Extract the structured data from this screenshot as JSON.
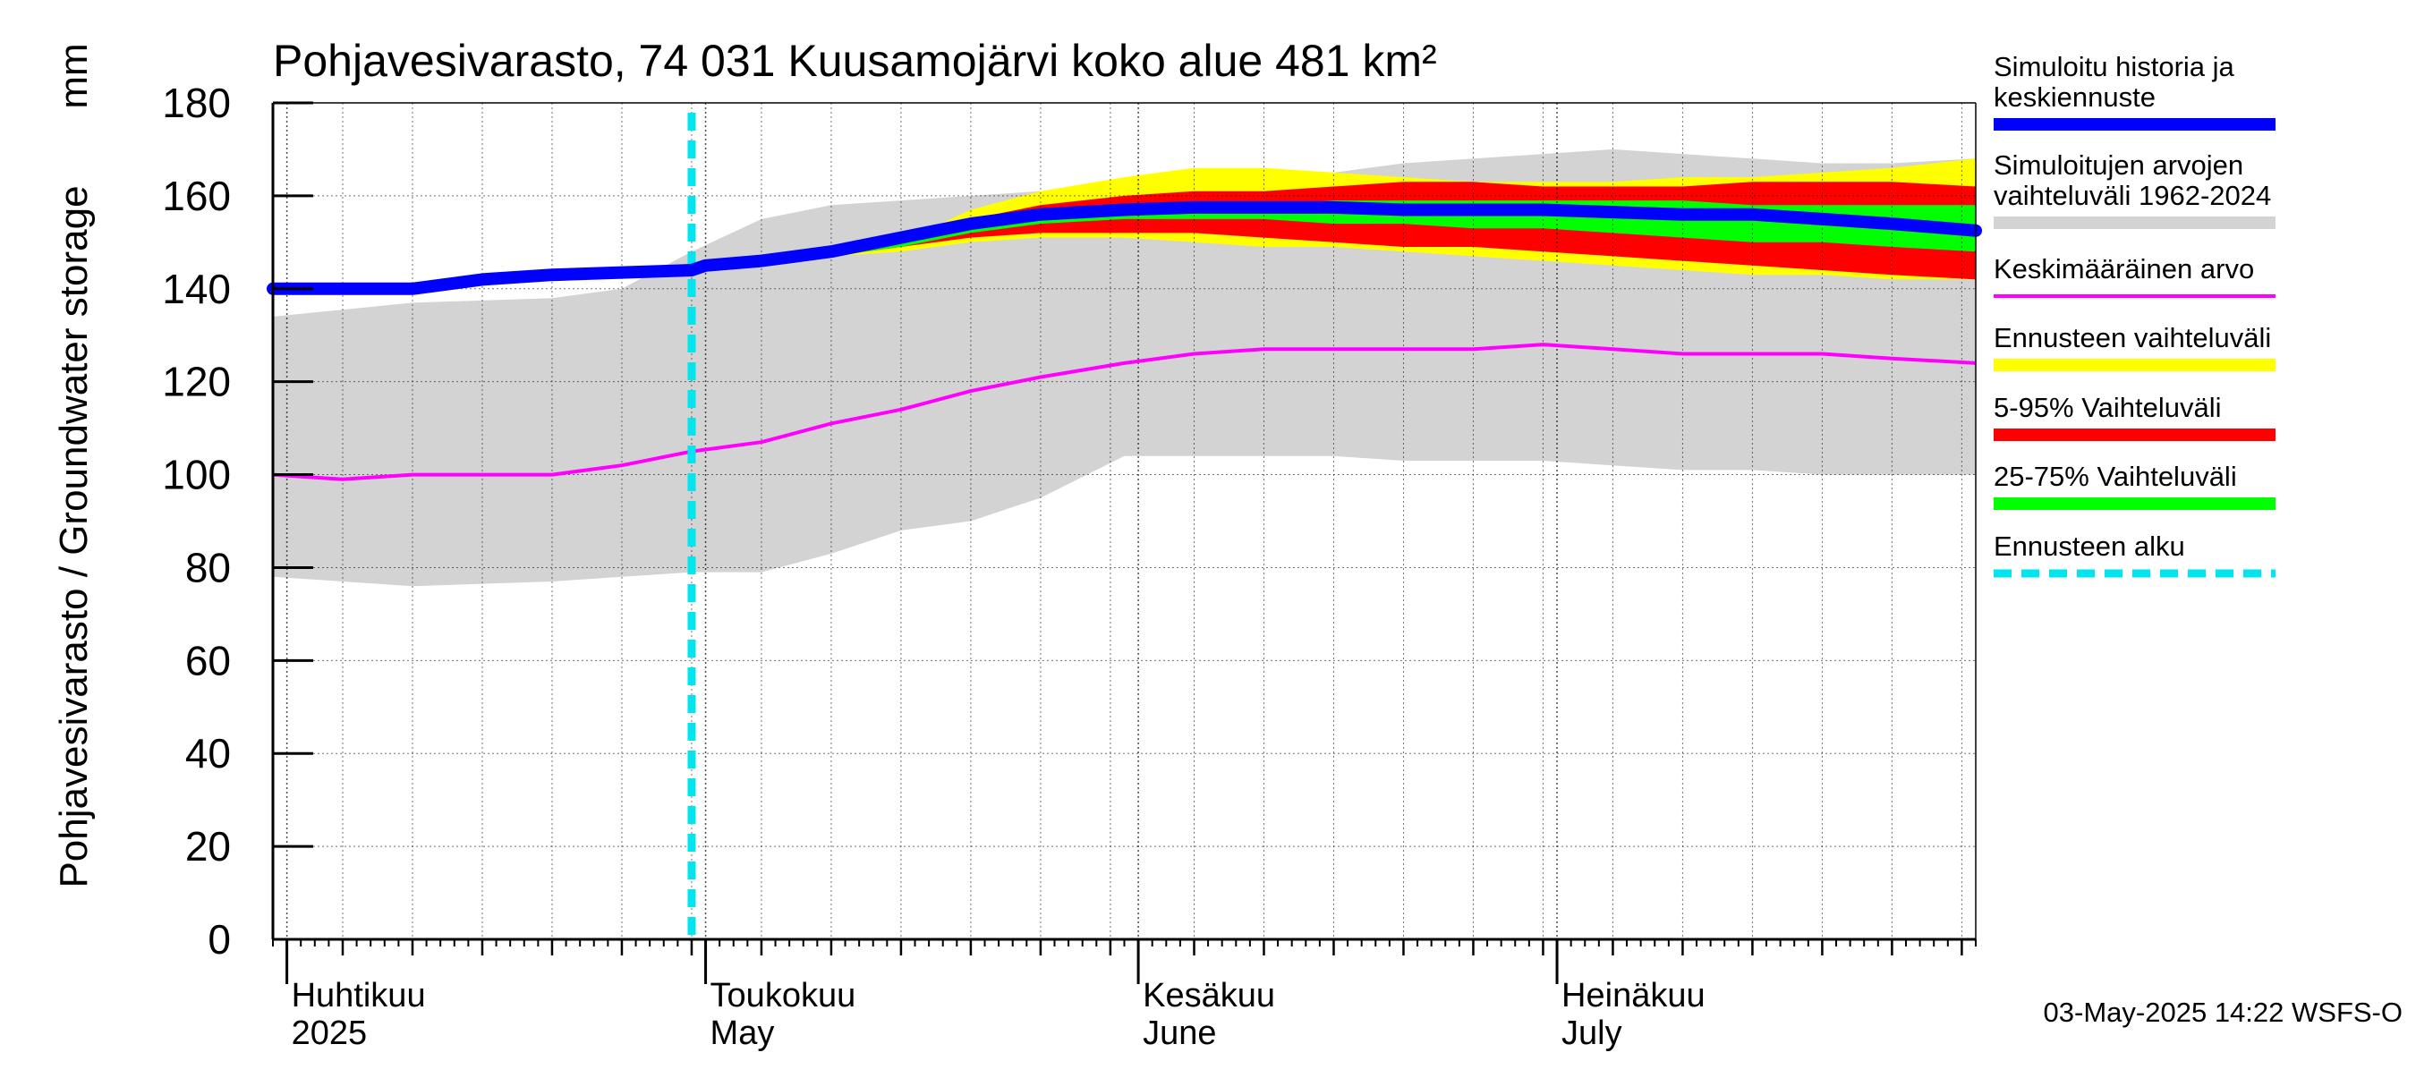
{
  "chart_data": {
    "type": "area",
    "title": "Pohjavesivarasto, 74 031 Kuusamojärvi koko alue 481 km²",
    "ylabel": "Pohjavesivarasto / Groundwater storage",
    "yunit": "mm",
    "ylim": [
      0,
      180
    ],
    "yticks": [
      0,
      20,
      40,
      60,
      80,
      100,
      120,
      140,
      160,
      180
    ],
    "xlim": [
      "2025-03-31",
      "2025-07-31"
    ],
    "grid": true,
    "legend_position": "right",
    "month_labels": [
      {
        "date": "2025-04-01",
        "fi": "Huhtikuu",
        "en": "2025"
      },
      {
        "date": "2025-05-01",
        "fi": "Toukokuu",
        "en": "May"
      },
      {
        "date": "2025-06-01",
        "fi": "Kesäkuu",
        "en": "June"
      },
      {
        "date": "2025-07-01",
        "fi": "Heinäkuu",
        "en": "July"
      }
    ],
    "forecast_start": "2025-04-30",
    "footer": "03-May-2025 14:22 WSFS-O",
    "legend": [
      {
        "label": "Simuloitu historia ja keskiennuste",
        "lines": [
          "Simuloitu historia ja",
          "keskiennuste"
        ],
        "color": "#0000ff",
        "style": "thick"
      },
      {
        "label": "Simuloitujen arvojen vaihteluväli 1962-2024",
        "lines": [
          "Simuloitujen arvojen",
          "vaihteluväli 1962-2024"
        ],
        "color": "#d3d3d3",
        "style": "thick"
      },
      {
        "label": "Keskimääräinen arvo",
        "lines": [
          "Keskimääräinen arvo"
        ],
        "color": "#ff00ff",
        "style": "thin"
      },
      {
        "label": "Ennusteen vaihteluväli",
        "lines": [
          "Ennusteen vaihteluväli"
        ],
        "color": "#ffff00",
        "style": "thick"
      },
      {
        "label": "5-95% Vaihteluväli",
        "lines": [
          "5-95% Vaihteluväli"
        ],
        "color": "#ff0000",
        "style": "thick"
      },
      {
        "label": "25-75% Vaihteluväli",
        "lines": [
          "25-75% Vaihteluväli"
        ],
        "color": "#00ff00",
        "style": "thick"
      },
      {
        "label": "Ennusteen alku",
        "lines": [
          "Ennusteen alku"
        ],
        "color": "#00e5ee",
        "style": "dashed"
      }
    ],
    "historical_range": {
      "color": "#d3d3d3",
      "x": [
        "2025-03-31",
        "2025-04-10",
        "2025-04-20",
        "2025-04-25",
        "2025-04-30",
        "2025-05-05",
        "2025-05-10",
        "2025-05-15",
        "2025-05-20",
        "2025-05-25",
        "2025-05-31",
        "2025-06-05",
        "2025-06-10",
        "2025-06-15",
        "2025-06-20",
        "2025-06-25",
        "2025-06-30",
        "2025-07-05",
        "2025-07-10",
        "2025-07-15",
        "2025-07-20",
        "2025-07-25",
        "2025-07-31"
      ],
      "upper": [
        134,
        137,
        138,
        140,
        148,
        155,
        158,
        159,
        160,
        161,
        162,
        163,
        164,
        165,
        167,
        168,
        169,
        170,
        169,
        168,
        167,
        167,
        168
      ],
      "lower": [
        78,
        76,
        77,
        78,
        79,
        79,
        83,
        88,
        90,
        95,
        104,
        104,
        104,
        104,
        103,
        103,
        103,
        102,
        101,
        101,
        100,
        100,
        100
      ]
    },
    "forecast_range": {
      "color": "#ffff00",
      "x": [
        "2025-04-30",
        "2025-05-05",
        "2025-05-10",
        "2025-05-15",
        "2025-05-20",
        "2025-05-25",
        "2025-05-31",
        "2025-06-05",
        "2025-06-10",
        "2025-06-15",
        "2025-06-20",
        "2025-06-25",
        "2025-06-30",
        "2025-07-05",
        "2025-07-10",
        "2025-07-15",
        "2025-07-20",
        "2025-07-25",
        "2025-07-31"
      ],
      "upper": [
        144,
        146,
        147,
        150,
        157,
        161,
        164,
        166,
        166,
        165,
        164,
        163,
        163,
        163,
        164,
        164,
        165,
        166,
        168
      ],
      "lower": [
        144,
        146,
        147,
        148,
        150,
        151,
        151,
        150,
        149,
        149,
        148,
        147,
        146,
        145,
        144,
        143,
        143,
        142,
        142
      ]
    },
    "p5_95_range": {
      "color": "#ff0000",
      "x": [
        "2025-04-30",
        "2025-05-05",
        "2025-05-10",
        "2025-05-15",
        "2025-05-20",
        "2025-05-25",
        "2025-05-31",
        "2025-06-05",
        "2025-06-10",
        "2025-06-15",
        "2025-06-20",
        "2025-06-25",
        "2025-06-30",
        "2025-07-05",
        "2025-07-10",
        "2025-07-15",
        "2025-07-20",
        "2025-07-25",
        "2025-07-31"
      ],
      "upper": [
        144,
        146,
        147,
        150,
        155,
        158,
        160,
        161,
        161,
        162,
        163,
        163,
        162,
        162,
        162,
        163,
        163,
        163,
        162
      ],
      "lower": [
        144,
        146,
        147,
        149,
        151,
        152,
        152,
        152,
        151,
        150,
        149,
        149,
        148,
        147,
        146,
        145,
        144,
        143,
        142
      ]
    },
    "p25_75_range": {
      "color": "#00ff00",
      "x": [
        "2025-04-30",
        "2025-05-05",
        "2025-05-10",
        "2025-05-15",
        "2025-05-20",
        "2025-05-25",
        "2025-05-31",
        "2025-06-05",
        "2025-06-10",
        "2025-06-15",
        "2025-06-20",
        "2025-06-25",
        "2025-06-30",
        "2025-07-05",
        "2025-07-10",
        "2025-07-15",
        "2025-07-20",
        "2025-07-25",
        "2025-07-31"
      ],
      "upper": [
        144,
        146,
        147,
        150,
        153,
        155,
        157,
        158,
        158,
        159,
        159,
        159,
        159,
        159,
        159,
        158,
        158,
        158,
        158
      ],
      "lower": [
        144,
        146,
        147,
        149,
        152,
        154,
        155,
        155,
        155,
        154,
        154,
        153,
        153,
        152,
        151,
        150,
        150,
        149,
        148
      ]
    },
    "series": [
      {
        "name": "Simuloitu historia ja keskiennuste",
        "color": "#0000ff",
        "x": [
          "2025-03-31",
          "2025-04-05",
          "2025-04-10",
          "2025-04-15",
          "2025-04-20",
          "2025-04-25",
          "2025-04-30",
          "2025-05-01",
          "2025-05-05",
          "2025-05-10",
          "2025-05-15",
          "2025-05-20",
          "2025-05-25",
          "2025-05-31",
          "2025-06-05",
          "2025-06-10",
          "2025-06-15",
          "2025-06-20",
          "2025-06-25",
          "2025-06-30",
          "2025-07-05",
          "2025-07-10",
          "2025-07-15",
          "2025-07-20",
          "2025-07-25",
          "2025-07-31"
        ],
        "values": [
          140,
          140,
          140,
          142,
          143,
          143.5,
          144,
          145,
          146,
          148,
          151,
          154,
          156,
          157,
          157.5,
          157.5,
          157.5,
          157,
          157,
          157,
          156.5,
          156,
          156,
          155,
          154,
          152.5
        ]
      },
      {
        "name": "Keskimääräinen arvo",
        "color": "#ff00ff",
        "x": [
          "2025-03-31",
          "2025-04-05",
          "2025-04-10",
          "2025-04-15",
          "2025-04-20",
          "2025-04-25",
          "2025-04-30",
          "2025-05-05",
          "2025-05-10",
          "2025-05-15",
          "2025-05-20",
          "2025-05-25",
          "2025-05-31",
          "2025-06-05",
          "2025-06-10",
          "2025-06-15",
          "2025-06-20",
          "2025-06-25",
          "2025-06-30",
          "2025-07-05",
          "2025-07-10",
          "2025-07-15",
          "2025-07-20",
          "2025-07-25",
          "2025-07-31"
        ],
        "values": [
          100,
          99,
          100,
          100,
          100,
          102,
          105,
          107,
          111,
          114,
          118,
          121,
          124,
          126,
          127,
          127,
          127,
          127,
          128,
          127,
          126,
          126,
          126,
          125,
          124
        ]
      }
    ]
  }
}
